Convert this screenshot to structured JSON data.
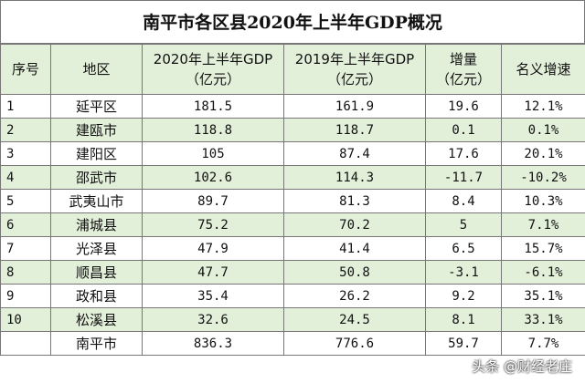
{
  "title": "南平市各区县2020年上半年GDP概况",
  "table": {
    "header": [
      [
        "序号"
      ],
      [
        "地区"
      ],
      [
        "2020年上半年GDP",
        "（亿元）"
      ],
      [
        "2019年上半年GDP",
        "（亿元）"
      ],
      [
        "增量",
        "（亿元）"
      ],
      [
        "名义增速"
      ]
    ],
    "rows": [
      [
        "1",
        "延平区",
        "181.5",
        "161.9",
        "19.6",
        "12.1%"
      ],
      [
        "2",
        "建瓯市",
        "118.8",
        "118.7",
        "0.1",
        "0.1%"
      ],
      [
        "3",
        "建阳区",
        "105",
        "87.4",
        "17.6",
        "20.1%"
      ],
      [
        "4",
        "邵武市",
        "102.6",
        "114.3",
        "-11.7",
        "-10.2%"
      ],
      [
        "5",
        "武夷山市",
        "89.7",
        "81.3",
        "8.4",
        "10.3%"
      ],
      [
        "6",
        "浦城县",
        "75.2",
        "70.2",
        "5",
        "7.1%"
      ],
      [
        "7",
        "光泽县",
        "47.9",
        "41.4",
        "6.5",
        "15.7%"
      ],
      [
        "8",
        "顺昌县",
        "47.7",
        "50.8",
        "-3.1",
        "-6.1%"
      ],
      [
        "9",
        "政和县",
        "35.4",
        "26.2",
        "9.2",
        "35.1%"
      ],
      [
        "10",
        "松溪县",
        "32.6",
        "24.5",
        "8.1",
        "33.1%"
      ],
      [
        "",
        "南平市",
        "836.3",
        "776.6",
        "59.7",
        "7.7%"
      ]
    ]
  },
  "watermark": "头条 @财经老庄"
}
